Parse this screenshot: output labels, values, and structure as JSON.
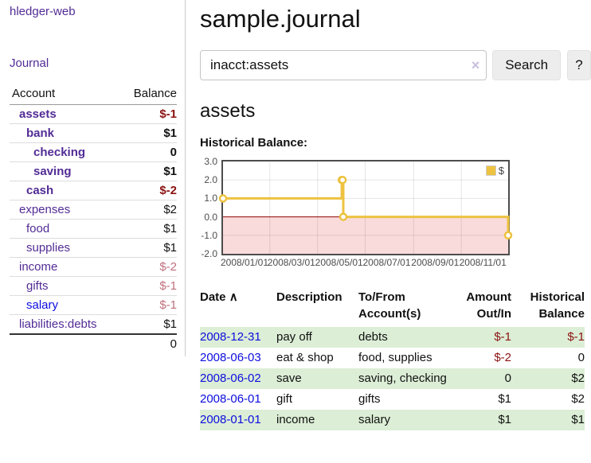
{
  "sidebar": {
    "app_title": "hledger-web",
    "nav_journal_label": "Journal",
    "accounts_table": {
      "headers": {
        "account": "Account",
        "balance": "Balance"
      },
      "rows": [
        {
          "label": "assets",
          "indent": 1,
          "bold": true,
          "link": "purple",
          "balance": "$-1",
          "balance_color": "neg-strong"
        },
        {
          "label": "bank",
          "indent": 2,
          "bold": true,
          "link": "purple",
          "balance": "$1",
          "balance_color": ""
        },
        {
          "label": "checking",
          "indent": 3,
          "bold": true,
          "link": "purple",
          "balance": "0",
          "balance_color": ""
        },
        {
          "label": "saving",
          "indent": 3,
          "bold": true,
          "link": "purple",
          "balance": "$1",
          "balance_color": ""
        },
        {
          "label": "cash",
          "indent": 2,
          "bold": true,
          "link": "purple",
          "balance": "$-2",
          "balance_color": "neg-strong"
        },
        {
          "label": "expenses",
          "indent": 1,
          "bold": false,
          "link": "purple",
          "balance": "$2",
          "balance_color": ""
        },
        {
          "label": "food",
          "indent": 2,
          "bold": false,
          "link": "purple",
          "balance": "$1",
          "balance_color": ""
        },
        {
          "label": "supplies",
          "indent": 2,
          "bold": false,
          "link": "purple",
          "balance": "$1",
          "balance_color": ""
        },
        {
          "label": "income",
          "indent": 1,
          "bold": false,
          "link": "purple",
          "balance": "$-2",
          "balance_color": "neg-muted"
        },
        {
          "label": "gifts",
          "indent": 2,
          "bold": false,
          "link": "purple",
          "balance": "$-1",
          "balance_color": "neg-muted"
        },
        {
          "label": "salary",
          "indent": 2,
          "bold": false,
          "link": "blue",
          "balance": "$-1",
          "balance_color": "neg-muted"
        },
        {
          "label": "liabilities:debts",
          "indent": 1,
          "bold": false,
          "link": "purple",
          "balance": "$1",
          "balance_color": ""
        }
      ],
      "total": "0"
    }
  },
  "main": {
    "title": "sample.journal",
    "search": {
      "value": "inacct:assets",
      "clear_icon": "×",
      "search_label": "Search",
      "help_label": "?"
    },
    "account_heading": "assets",
    "chart_heading": "Historical Balance:"
  },
  "chart_data": {
    "type": "line",
    "step": true,
    "title": "Historical Balance",
    "x_range": [
      "2008-01-01",
      "2008-12-31"
    ],
    "ylim": [
      -2.0,
      3.0
    ],
    "series": [
      {
        "name": "$",
        "color": "#edc240",
        "points": [
          [
            "2008-01-01",
            1
          ],
          [
            "2008-06-01",
            2
          ],
          [
            "2008-06-02",
            2
          ],
          [
            "2008-06-03",
            0
          ],
          [
            "2008-12-31",
            -1
          ]
        ]
      }
    ],
    "yticks": [
      {
        "v": 3.0,
        "label": "3.0"
      },
      {
        "v": 2.0,
        "label": "2.0"
      },
      {
        "v": 1.0,
        "label": "1.0"
      },
      {
        "v": 0.0,
        "label": "0.0"
      },
      {
        "v": -1.0,
        "label": "-1.0"
      },
      {
        "v": -2.0,
        "label": "-2.0"
      }
    ],
    "xticks": [
      {
        "date": "2008-01-01",
        "label": "2008/01/01"
      },
      {
        "date": "2008-03-01",
        "label": "2008/03/01"
      },
      {
        "date": "2008-05-01",
        "label": "2008/05/01"
      },
      {
        "date": "2008-07-01",
        "label": "2008/07/01"
      },
      {
        "date": "2008-09-01",
        "label": "2008/09/01"
      },
      {
        "date": "2008-11-01",
        "label": "2008/11/01"
      }
    ],
    "zero_line_color": "#8b0000",
    "negative_region_color": "#fadbdb",
    "grid": true,
    "legend": {
      "position": "top-right",
      "label": "$",
      "swatch_color": "#edc240"
    }
  },
  "register": {
    "sort_icon": "∧",
    "headers": [
      {
        "label": "Date"
      },
      {
        "label": "Description"
      },
      {
        "label": "To/From Account(s)"
      },
      {
        "label": "Amount Out/In"
      },
      {
        "label": "Historical Balance"
      }
    ],
    "rows": [
      {
        "date": "2008-12-31",
        "description": "pay off",
        "accounts": "debts",
        "amount": "$-1",
        "amount_color": "neg-strong",
        "balance": "$-1",
        "balance_color": "neg-strong"
      },
      {
        "date": "2008-06-03",
        "description": "eat & shop",
        "accounts": "food, supplies",
        "amount": "$-2",
        "amount_color": "neg-strong",
        "balance": "0",
        "balance_color": ""
      },
      {
        "date": "2008-06-02",
        "description": "save",
        "accounts": "saving, checking",
        "amount": "0",
        "amount_color": "",
        "balance": "$2",
        "balance_color": ""
      },
      {
        "date": "2008-06-01",
        "description": "gift",
        "accounts": "gifts",
        "amount": "$1",
        "amount_color": "",
        "balance": "$2",
        "balance_color": ""
      },
      {
        "date": "2008-01-01",
        "description": "income",
        "accounts": "salary",
        "amount": "$1",
        "amount_color": "",
        "balance": "$1",
        "balance_color": ""
      }
    ]
  },
  "colors": {
    "link_purple": "#522c95",
    "link_blue": "#0d0dde",
    "negative_strong": "#8c1212",
    "negative_muted": "#c0707e",
    "row_stripe_green": "#dceed6",
    "series_gold": "#edc240"
  }
}
